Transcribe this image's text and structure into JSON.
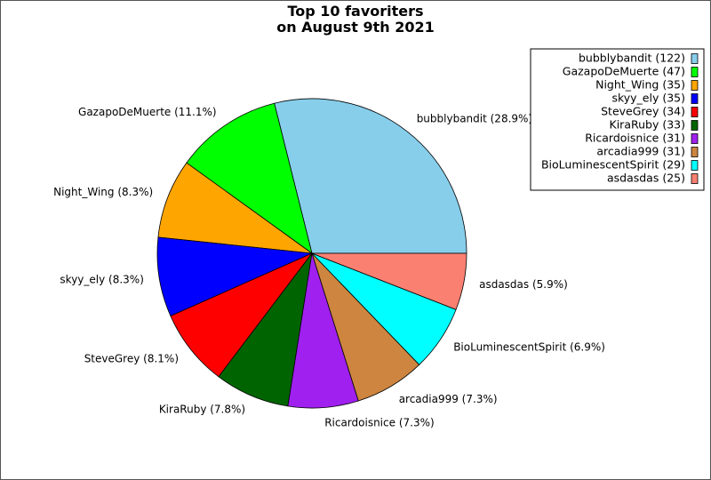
{
  "chart_data": {
    "type": "pie",
    "title": [
      "Top 10 favoriters",
      "on August 9th 2021"
    ],
    "legend_position": "top-right",
    "slices": [
      {
        "name": "bubblybandit",
        "value": 122,
        "percent_label": "28.9%",
        "color": "#87ceeb"
      },
      {
        "name": "GazapoDeMuerte",
        "value": 47,
        "percent_label": "11.1%",
        "color": "#00ff00"
      },
      {
        "name": "Night_Wing",
        "value": 35,
        "percent_label": "8.3%",
        "color": "#ffa500"
      },
      {
        "name": "skyy_ely",
        "value": 35,
        "percent_label": "8.3%",
        "color": "#0000ff"
      },
      {
        "name": "SteveGrey",
        "value": 34,
        "percent_label": "8.1%",
        "color": "#ff0000"
      },
      {
        "name": "KiraRuby",
        "value": 33,
        "percent_label": "7.8%",
        "color": "#006400"
      },
      {
        "name": "Ricardoisnice",
        "value": 31,
        "percent_label": "7.3%",
        "color": "#a020f0"
      },
      {
        "name": "arcadia999",
        "value": 31,
        "percent_label": "7.3%",
        "color": "#cd853f"
      },
      {
        "name": "BioLuminescentSpirit",
        "value": 29,
        "percent_label": "6.9%",
        "color": "#00ffff"
      },
      {
        "name": "asdasdas",
        "value": 25,
        "percent_label": "5.9%",
        "color": "#fa8072"
      }
    ]
  }
}
